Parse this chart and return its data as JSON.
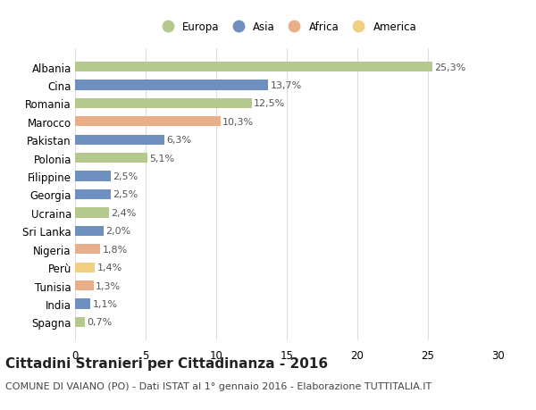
{
  "categories": [
    "Albania",
    "Cina",
    "Romania",
    "Marocco",
    "Pakistan",
    "Polonia",
    "Filippine",
    "Georgia",
    "Ucraina",
    "Sri Lanka",
    "Nigeria",
    "Perù",
    "Tunisia",
    "India",
    "Spagna"
  ],
  "values": [
    25.3,
    13.7,
    12.5,
    10.3,
    6.3,
    5.1,
    2.5,
    2.5,
    2.4,
    2.0,
    1.8,
    1.4,
    1.3,
    1.1,
    0.7
  ],
  "labels": [
    "25,3%",
    "13,7%",
    "12,5%",
    "10,3%",
    "6,3%",
    "5,1%",
    "2,5%",
    "2,5%",
    "2,4%",
    "2,0%",
    "1,8%",
    "1,4%",
    "1,3%",
    "1,1%",
    "0,7%"
  ],
  "colors": [
    "#b5c98e",
    "#6f8fbf",
    "#b5c98e",
    "#e8b08a",
    "#6f8fbf",
    "#b5c98e",
    "#6f8fbf",
    "#6f8fbf",
    "#b5c98e",
    "#6f8fbf",
    "#e8b08a",
    "#f0d080",
    "#e8b08a",
    "#6f8fbf",
    "#b5c98e"
  ],
  "legend_labels": [
    "Europa",
    "Asia",
    "Africa",
    "America"
  ],
  "legend_colors": [
    "#b5c98e",
    "#6f8fbf",
    "#e8b08a",
    "#f0d080"
  ],
  "title": "Cittadini Stranieri per Cittadinanza - 2016",
  "subtitle": "COMUNE DI VAIANO (PO) - Dati ISTAT al 1° gennaio 2016 - Elaborazione TUTTITALIA.IT",
  "xlim": [
    0,
    30
  ],
  "xticks": [
    0,
    5,
    10,
    15,
    20,
    25,
    30
  ],
  "bg_color": "#ffffff",
  "plot_bg_color": "#ffffff",
  "grid_color": "#dddddd",
  "title_fontsize": 11,
  "subtitle_fontsize": 8,
  "tick_fontsize": 8.5,
  "label_fontsize": 8
}
